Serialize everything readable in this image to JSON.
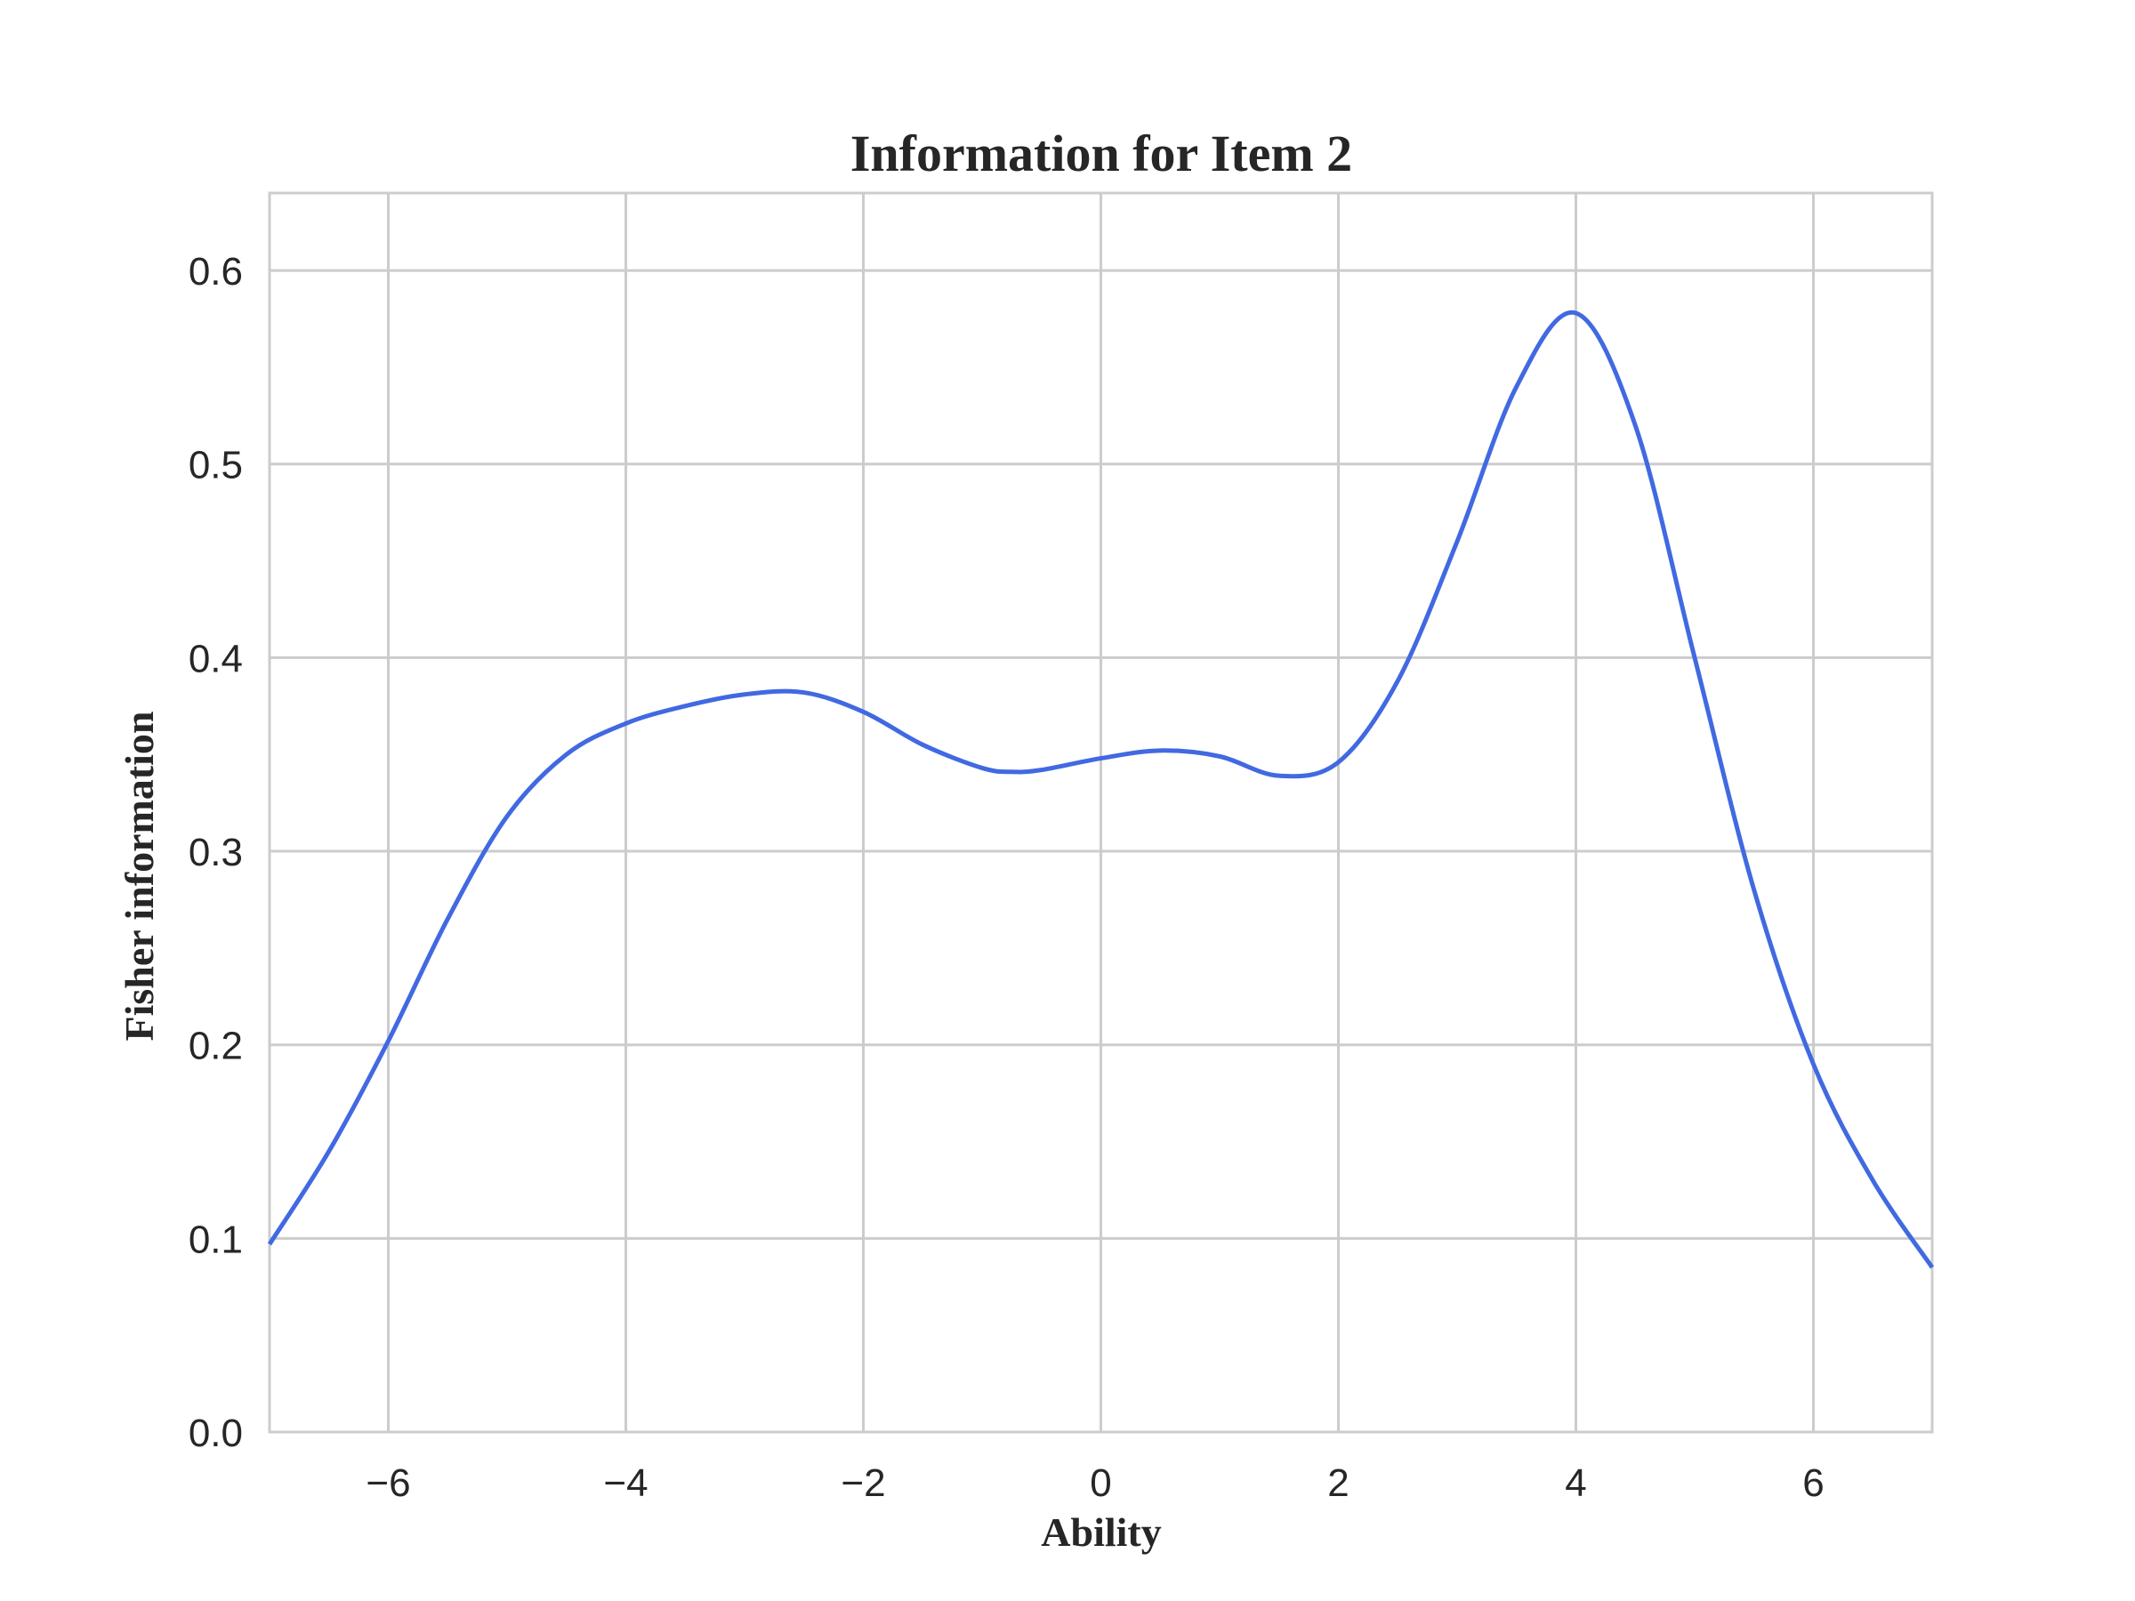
{
  "chart_data": {
    "type": "line",
    "title": "Information for Item 2",
    "xlabel": "Ability",
    "ylabel": "Fisher information",
    "xlim": [
      -7,
      7
    ],
    "ylim": [
      0,
      0.64
    ],
    "x_ticks": [
      -6,
      -4,
      -2,
      0,
      2,
      4,
      6
    ],
    "x_tick_labels": [
      "−6",
      "−4",
      "−2",
      "0",
      "2",
      "4",
      "6"
    ],
    "y_ticks": [
      0.0,
      0.1,
      0.2,
      0.3,
      0.4,
      0.5,
      0.6
    ],
    "y_tick_labels": [
      "0.0",
      "0.1",
      "0.2",
      "0.3",
      "0.4",
      "0.5",
      "0.6"
    ],
    "grid": true,
    "line_color": "#4169e1",
    "series": [
      {
        "x": [
          -7,
          -6.5,
          -6,
          -5.5,
          -5,
          -4.5,
          -4,
          -3.5,
          -3,
          -2.5,
          -2,
          -1.5,
          -1,
          -0.75,
          -0.5,
          0,
          0.5,
          1,
          1.5,
          2,
          2.5,
          3,
          3.5,
          4,
          4.5,
          5,
          5.5,
          6,
          6.5,
          7
        ],
        "values": [
          0.097,
          0.145,
          0.202,
          0.265,
          0.318,
          0.35,
          0.366,
          0.375,
          0.381,
          0.382,
          0.372,
          0.355,
          0.343,
          0.341,
          0.342,
          0.348,
          0.352,
          0.349,
          0.339,
          0.346,
          0.388,
          0.46,
          0.54,
          0.578,
          0.52,
          0.4,
          0.28,
          0.19,
          0.13,
          0.085
        ]
      }
    ]
  }
}
